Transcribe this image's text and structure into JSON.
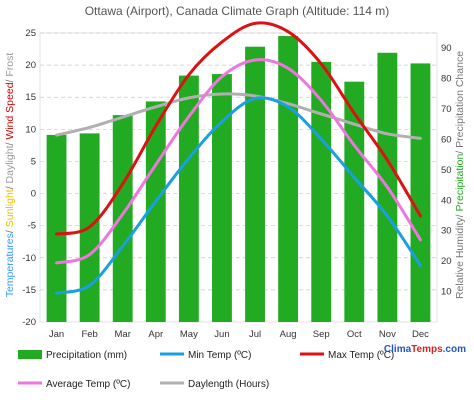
{
  "chart_data": {
    "type": "bar+line",
    "title": "Ottawa (Airport), Canada Climate Graph (Altitude: 114 m)",
    "categories": [
      "Jan",
      "Feb",
      "Mar",
      "Apr",
      "May",
      "Jun",
      "Jul",
      "Aug",
      "Sep",
      "Oct",
      "Nov",
      "Dec"
    ],
    "left_axis": {
      "ylim": [
        -20,
        25
      ],
      "ticks": [
        -20,
        -15,
        -10,
        -5,
        0,
        5,
        10,
        15,
        20,
        25
      ],
      "label_parts": [
        {
          "text": "Temperatures",
          "color": "#3399ff"
        },
        {
          "text": "/ ",
          "color": "#777777"
        },
        {
          "text": "Sunlight",
          "color": "#f0c000"
        },
        {
          "text": "/ ",
          "color": "#777777"
        },
        {
          "text": "Daylight",
          "color": "#999999"
        },
        {
          "text": "/ ",
          "color": "#777777"
        },
        {
          "text": "Wind Speed",
          "color": "#cc0000"
        },
        {
          "text": "/ ",
          "color": "#777777"
        },
        {
          "text": "Frost",
          "color": "#999999"
        }
      ]
    },
    "right_axis": {
      "ylim": [
        0,
        95
      ],
      "ticks": [
        10,
        20,
        30,
        40,
        50,
        60,
        70,
        80,
        90
      ],
      "label_parts": [
        {
          "text": "Relative Humidity",
          "color": "#777777"
        },
        {
          "text": "/ ",
          "color": "#777777"
        },
        {
          "text": "Precipitation",
          "color": "#22aa22"
        },
        {
          "text": "/ ",
          "color": "#777777"
        },
        {
          "text": "Precipitation Chance",
          "color": "#777777"
        }
      ]
    },
    "grid": true,
    "bars": {
      "name": "Precipitation (mm)",
      "axis": "right",
      "color": "#22aa22",
      "values": [
        61.5,
        62,
        68,
        72.5,
        81,
        81.5,
        90.5,
        94,
        85.5,
        79,
        88.5,
        85
      ]
    },
    "series": [
      {
        "name": "Min Temp (ºC)",
        "axis": "left",
        "color": "#1a9fe0",
        "values": [
          -15.5,
          -14.3,
          -8.2,
          -1.2,
          5.5,
          11.2,
          14.8,
          13.5,
          8.5,
          2.5,
          -3.5,
          -11.2
        ]
      },
      {
        "name": "Max Temp (ºC)",
        "axis": "left",
        "color": "#dd1111",
        "values": [
          -6.3,
          -5.2,
          1.5,
          10.5,
          18.5,
          23.6,
          26.5,
          25.2,
          20.2,
          12.5,
          5.2,
          -3.5
        ]
      },
      {
        "name": "Average Temp (ºC)",
        "axis": "left",
        "color": "#ee77dd",
        "values": [
          -10.8,
          -9.5,
          -3.2,
          4.5,
          12.0,
          18.2,
          20.8,
          19.5,
          14.5,
          7.5,
          1.0,
          -7.2
        ]
      },
      {
        "name": "Daylength (Hours)",
        "axis": "left",
        "color": "#b0b0b0",
        "values": [
          9.1,
          10.3,
          11.9,
          13.5,
          14.9,
          15.5,
          15.2,
          14.0,
          12.4,
          10.8,
          9.3,
          8.6
        ]
      }
    ],
    "legend_position": "bottom"
  },
  "brand": {
    "part1": "Clima",
    "part2": "Temps",
    "part3": ".com",
    "color1": "#2255cc",
    "color2": "#dd2222"
  }
}
